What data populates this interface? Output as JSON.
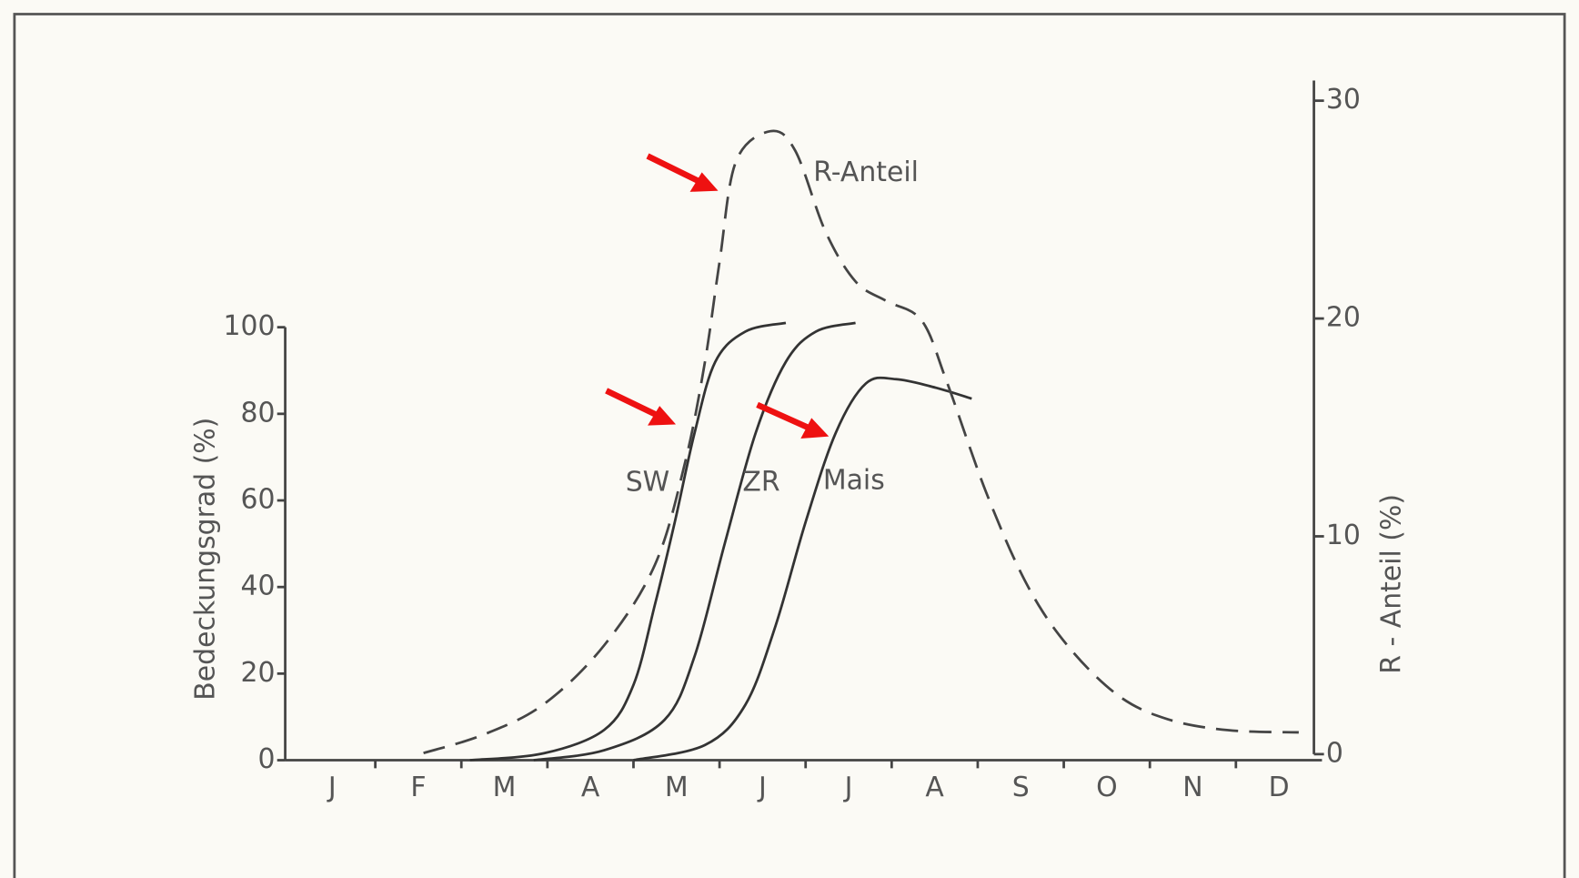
{
  "chart_data": {
    "type": "line",
    "xlim": [
      0,
      12
    ],
    "xticks": [
      {
        "value": 0.5,
        "label": "J"
      },
      {
        "value": 1.5,
        "label": "F"
      },
      {
        "value": 2.5,
        "label": "M"
      },
      {
        "value": 3.5,
        "label": "A"
      },
      {
        "value": 4.5,
        "label": "M"
      },
      {
        "value": 5.5,
        "label": "J"
      },
      {
        "value": 6.5,
        "label": "J"
      },
      {
        "value": 7.5,
        "label": "A"
      },
      {
        "value": 8.5,
        "label": "S"
      },
      {
        "value": 9.5,
        "label": "O"
      },
      {
        "value": 10.5,
        "label": "N"
      },
      {
        "value": 11.5,
        "label": "D"
      }
    ],
    "ylabel": "Bedeckungsgrad (%)",
    "ylim": [
      0,
      100
    ],
    "yticks": [
      0,
      20,
      40,
      60,
      80,
      100
    ],
    "y2label": "R - Anteil (%)",
    "y2lim": [
      0,
      30
    ],
    "y2ticks": [
      0,
      10,
      20,
      30
    ],
    "series": [
      {
        "name": "SW",
        "color": "#333333",
        "dashed": false,
        "x": [
          2.1,
          2.96,
          3.66,
          4.0,
          4.25,
          4.48,
          4.71,
          4.95,
          5.3,
          5.77
        ],
        "values": [
          0,
          1.6,
          7,
          17.4,
          36,
          55,
          75.6,
          92,
          99,
          101
        ]
      },
      {
        "name": "ZR",
        "color": "#333333",
        "dashed": false,
        "x": [
          2.84,
          3.66,
          4.36,
          4.71,
          5.06,
          5.42,
          5.77,
          6.12,
          6.58
        ],
        "values": [
          0,
          2.3,
          9.3,
          24,
          50,
          75.6,
          92,
          99,
          101
        ]
      },
      {
        "name": "Mais",
        "color": "#333333",
        "dashed": false,
        "x": [
          4.0,
          4.83,
          5.3,
          5.65,
          6.0,
          6.35,
          6.7,
          7.05,
          7.52,
          7.93
        ],
        "values": [
          0,
          3.5,
          12.8,
          31,
          55,
          75.6,
          87,
          88,
          86,
          83.5
        ]
      },
      {
        "name": "R-Anteil",
        "color": "#444444",
        "dashed": true,
        "axis": "y2",
        "x": [
          1.56,
          2.26,
          2.96,
          3.66,
          4.25,
          4.6,
          4.83,
          5.0,
          5.19,
          5.59,
          5.88,
          6.23,
          6.58,
          6.94,
          7.35,
          7.64,
          8.1,
          8.57,
          9.04,
          9.63,
          10.21,
          10.91,
          11.73
        ],
        "values": [
          0.05,
          0.9,
          2.3,
          5.0,
          8.7,
          13.4,
          18,
          22.6,
          27.2,
          28.6,
          27.7,
          24.0,
          21.7,
          20.8,
          19.9,
          17.1,
          12.0,
          7.8,
          5.0,
          2.7,
          1.6,
          1.1,
          1.0
        ]
      }
    ]
  }
}
